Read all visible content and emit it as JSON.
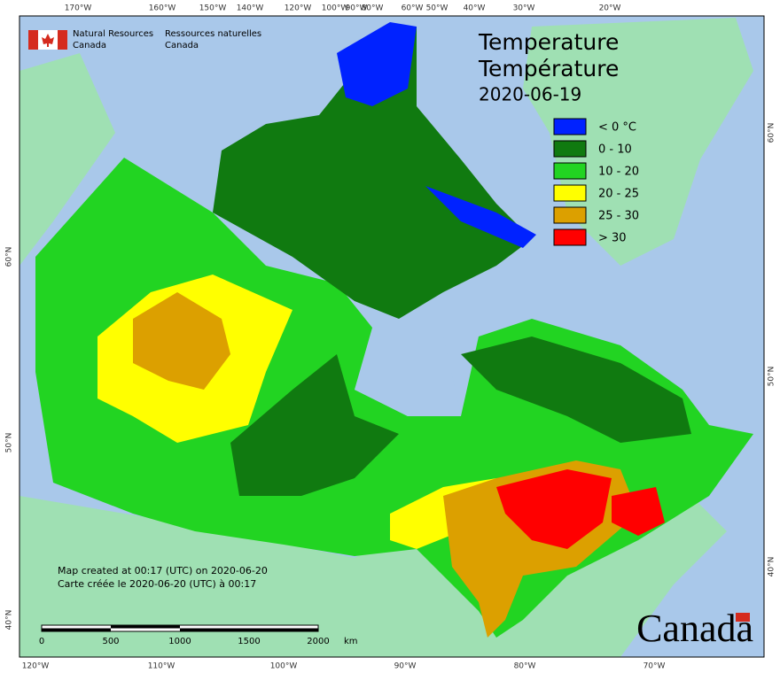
{
  "header": {
    "agency_en": [
      "Natural Resources",
      "Canada"
    ],
    "agency_fr": [
      "Ressources naturelles",
      "Canada"
    ]
  },
  "title": [
    "Temperature",
    "Température"
  ],
  "date": "2020-06-19",
  "legend": [
    {
      "label": "< 0 °C",
      "color": "#0022ff"
    },
    {
      "label": "0 - 10",
      "color": "#107a10"
    },
    {
      "label": "10 - 20",
      "color": "#22d422"
    },
    {
      "label": "20 - 25",
      "color": "#ffff00"
    },
    {
      "label": "25 - 30",
      "color": "#dca000"
    },
    {
      "label": "> 30",
      "color": "#ff0000"
    }
  ],
  "top_ticks": [
    "170°W",
    "160°W",
    "150°W",
    "140°W",
    "120°W",
    "100°W",
    "90°W",
    "80°W",
    "60°W",
    "50°W",
    "40°W",
    "30°W",
    "20°W"
  ],
  "bottom_ticks": [
    "120°W",
    "110°W",
    "100°W",
    "90°W",
    "80°W",
    "70°W"
  ],
  "left_ticks": [
    "60°N",
    "50°N",
    "40°N"
  ],
  "right_ticks": [
    "60°N",
    "50°N",
    "40°N"
  ],
  "credits": [
    "Map created at 00:17 (UTC) on 2020-06-20",
    "Carte créée le 2020-06-20 (UTC) à 00:17"
  ],
  "scale": {
    "labels": [
      0,
      500,
      1000,
      1500,
      2000
    ],
    "unit": "km"
  },
  "wordmark": "Canada"
}
